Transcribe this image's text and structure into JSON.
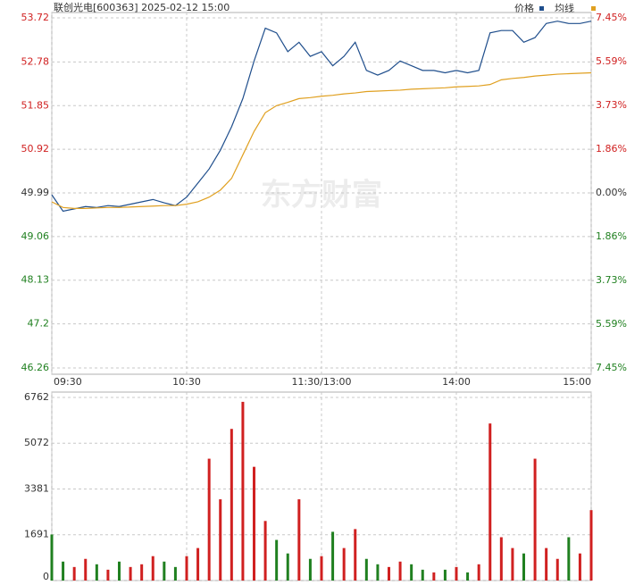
{
  "chart_data": {
    "type": "intraday",
    "title": "联创光电[600363] 2025-02-12 15:00",
    "watermark": "东方财富",
    "x": [
      0,
      5,
      10,
      15,
      20,
      25,
      30,
      35,
      40,
      45,
      50,
      55,
      60,
      65,
      70,
      75,
      80,
      85,
      90,
      95,
      100,
      105,
      110,
      115,
      120,
      125,
      130,
      135,
      140,
      145,
      150,
      155,
      160,
      165,
      170,
      175,
      180,
      185,
      190,
      195,
      200,
      205,
      210,
      215,
      220,
      225,
      230,
      235,
      240
    ],
    "xlim": [
      0,
      240
    ],
    "xticks": [
      {
        "value": 0,
        "label": "09:30"
      },
      {
        "value": 60,
        "label": "10:30"
      },
      {
        "value": 120,
        "label": "11:30/13:00"
      },
      {
        "value": 180,
        "label": "14:00"
      },
      {
        "value": 240,
        "label": "15:00"
      }
    ],
    "ylim": [
      46.26,
      53.72
    ],
    "yticks": [
      53.72,
      52.78,
      51.85,
      50.92,
      49.99,
      49.06,
      48.13,
      47.2,
      46.26
    ],
    "base": 49.99,
    "up_color": "#d02020",
    "down_color": "#208020",
    "y2lim": [
      -7.45,
      7.45
    ],
    "y2ticks": [
      {
        "value": 7.45,
        "label": "7.45%"
      },
      {
        "value": 5.59,
        "label": "5.59%"
      },
      {
        "value": 3.73,
        "label": "3.73%"
      },
      {
        "value": 1.86,
        "label": "1.86%"
      },
      {
        "value": 0,
        "label": "0.00%"
      },
      {
        "value": -1.86,
        "label": "1.86%"
      },
      {
        "value": -3.73,
        "label": "3.73%"
      },
      {
        "value": -5.59,
        "label": "5.59%"
      },
      {
        "value": -7.45,
        "label": "7.45%"
      }
    ],
    "series": [
      {
        "name": "价格",
        "color": "#1f4e8c",
        "values": [
          49.95,
          49.6,
          49.65,
          49.7,
          49.68,
          49.72,
          49.7,
          49.75,
          49.8,
          49.85,
          49.78,
          49.72,
          49.9,
          50.2,
          50.5,
          50.9,
          51.4,
          52.0,
          52.8,
          53.5,
          53.4,
          53.0,
          53.2,
          52.9,
          53.0,
          52.7,
          52.9,
          53.2,
          52.6,
          52.5,
          52.6,
          52.8,
          52.7,
          52.6,
          52.6,
          52.55,
          52.6,
          52.55,
          52.6,
          53.4,
          53.45,
          53.45,
          53.2,
          53.3,
          53.6,
          53.65,
          53.6,
          53.6,
          53.65
        ]
      },
      {
        "name": "均线",
        "color": "#e0a020",
        "values": [
          49.8,
          49.68,
          49.66,
          49.66,
          49.67,
          49.68,
          49.68,
          49.69,
          49.7,
          49.71,
          49.72,
          49.72,
          49.75,
          49.8,
          49.9,
          50.05,
          50.3,
          50.8,
          51.3,
          51.7,
          51.85,
          51.92,
          52.0,
          52.02,
          52.05,
          52.07,
          52.1,
          52.12,
          52.15,
          52.16,
          52.17,
          52.18,
          52.2,
          52.21,
          52.22,
          52.23,
          52.25,
          52.26,
          52.27,
          52.3,
          52.4,
          52.43,
          52.45,
          52.48,
          52.5,
          52.52,
          52.53,
          52.54,
          52.55
        ]
      }
    ],
    "volume": {
      "ylim": [
        0,
        6762
      ],
      "yticks": [
        6762,
        5072,
        3381,
        1691,
        0
      ],
      "values": [
        1700,
        700,
        500,
        800,
        600,
        400,
        700,
        500,
        600,
        900,
        700,
        500,
        900,
        1200,
        4500,
        3000,
        5600,
        6600,
        4200,
        2200,
        1500,
        1000,
        3000,
        800,
        900,
        1800,
        1200,
        1900,
        800,
        600,
        500,
        700,
        600,
        400,
        300,
        400,
        500,
        300,
        600,
        5800,
        1600,
        1200,
        1000,
        4500,
        1200,
        800,
        1600,
        1000,
        2600
      ]
    }
  }
}
